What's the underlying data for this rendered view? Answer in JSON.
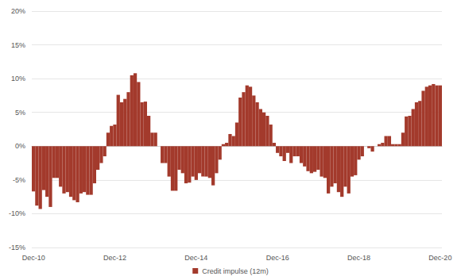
{
  "chart_data": {
    "type": "bar",
    "categories": [
      "Dec-10",
      null,
      null,
      null,
      null,
      null,
      null,
      null,
      null,
      null,
      null,
      null,
      null,
      null,
      null,
      null,
      null,
      null,
      null,
      null,
      null,
      null,
      null,
      null,
      "Dec-12",
      null,
      null,
      null,
      null,
      null,
      null,
      null,
      null,
      null,
      null,
      null,
      null,
      null,
      null,
      null,
      null,
      null,
      null,
      null,
      null,
      null,
      null,
      null,
      "Dec-14",
      null,
      null,
      null,
      null,
      null,
      null,
      null,
      null,
      null,
      null,
      null,
      null,
      null,
      null,
      null,
      null,
      null,
      null,
      null,
      null,
      null,
      null,
      null,
      "Dec-16",
      null,
      null,
      null,
      null,
      null,
      null,
      null,
      null,
      null,
      null,
      null,
      null,
      null,
      null,
      null,
      null,
      null,
      null,
      null,
      null,
      null,
      null,
      null,
      "Dec-18",
      null,
      null,
      null,
      null,
      null,
      null,
      null,
      null,
      null,
      null,
      null,
      null,
      null,
      null,
      null,
      null,
      null,
      null,
      null,
      null,
      null,
      null,
      null,
      "Dec-20"
    ],
    "series": [
      {
        "name": "Credit impulse (12m)",
        "color": "#a33a2c",
        "values": [
          -6.7,
          -8.8,
          -9.3,
          -6.5,
          -7.5,
          -9,
          -4.7,
          -4.7,
          -6,
          -7,
          -6.8,
          -7.5,
          -8,
          -8.3,
          -7,
          -6.8,
          -7.2,
          -7.2,
          -5.5,
          -3.5,
          -2.5,
          -1.5,
          2,
          3,
          3.2,
          7.6,
          6.5,
          7,
          8,
          10.5,
          10.8,
          9.5,
          6.5,
          6.6,
          4.5,
          2,
          2,
          0,
          -2.5,
          -2.5,
          -4.5,
          -6.6,
          -6.6,
          -3.5,
          -4,
          -5.5,
          -5.4,
          -4.5,
          -5,
          -4,
          -4.5,
          -4.5,
          -4.7,
          -5.8,
          -4,
          -2,
          0.3,
          0.5,
          1.8,
          1.5,
          3.5,
          7.2,
          8,
          9,
          8.8,
          7.5,
          6.5,
          5.5,
          5,
          4.5,
          3.2,
          0.5,
          -1,
          -1.5,
          -2.2,
          -1,
          -2.5,
          -1.5,
          -1.5,
          -2.5,
          -3,
          -3.7,
          -4,
          -3.8,
          -3.5,
          -4.5,
          -4.7,
          -7,
          -6,
          -5.5,
          -6.8,
          -7.5,
          -6,
          -7,
          -4.5,
          -4.3,
          -2,
          -1.5,
          0,
          -0.3,
          -0.8,
          0,
          0.3,
          0.5,
          1.5,
          1.5,
          0.3,
          0.3,
          0.3,
          2,
          4.4,
          4.5,
          5.5,
          6.5,
          6.7,
          8.2,
          8.8,
          9,
          9.2,
          9,
          9
        ]
      }
    ],
    "ylim": [
      -15,
      20
    ],
    "yticks": [
      {
        "value": -15,
        "label": "-15%"
      },
      {
        "value": -10,
        "label": "-10%"
      },
      {
        "value": -5,
        "label": "-5%"
      },
      {
        "value": 0,
        "label": "0%"
      },
      {
        "value": 5,
        "label": "5%"
      },
      {
        "value": 10,
        "label": "10%"
      },
      {
        "value": 15,
        "label": "15%"
      },
      {
        "value": 20,
        "label": "20%"
      }
    ],
    "grid": true,
    "legend": "bottom"
  }
}
